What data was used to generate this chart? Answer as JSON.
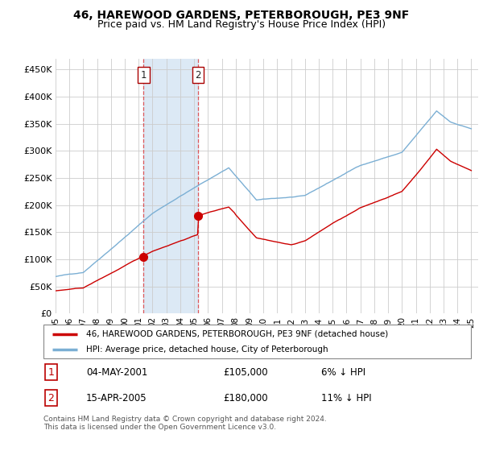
{
  "title": "46, HAREWOOD GARDENS, PETERBOROUGH, PE3 9NF",
  "subtitle": "Price paid vs. HM Land Registry's House Price Index (HPI)",
  "ylabel_ticks": [
    "£0",
    "£50K",
    "£100K",
    "£150K",
    "£200K",
    "£250K",
    "£300K",
    "£350K",
    "£400K",
    "£450K"
  ],
  "ytick_values": [
    0,
    50000,
    100000,
    150000,
    200000,
    250000,
    300000,
    350000,
    400000,
    450000
  ],
  "ylim": [
    0,
    470000
  ],
  "xlim_start": 1995.0,
  "xlim_end": 2025.5,
  "purchase1_year": 2001.35,
  "purchase1_price": 105000,
  "purchase2_year": 2005.29,
  "purchase2_price": 180000,
  "purchase1_date": "04-MAY-2001",
  "purchase1_amount": "£105,000",
  "purchase1_hpi": "6% ↓ HPI",
  "purchase2_date": "15-APR-2005",
  "purchase2_amount": "£180,000",
  "purchase2_hpi": "11% ↓ HPI",
  "line1_color": "#cc0000",
  "line2_color": "#7bafd4",
  "shade_color": "#dce9f5",
  "marker_color": "#cc0000",
  "legend1": "46, HAREWOOD GARDENS, PETERBOROUGH, PE3 9NF (detached house)",
  "legend2": "HPI: Average price, detached house, City of Peterborough",
  "footnote1": "Contains HM Land Registry data © Crown copyright and database right 2024.",
  "footnote2": "This data is licensed under the Open Government Licence v3.0.",
  "background_color": "#ffffff",
  "grid_color": "#cccccc",
  "title_fontsize": 10,
  "subtitle_fontsize": 9
}
